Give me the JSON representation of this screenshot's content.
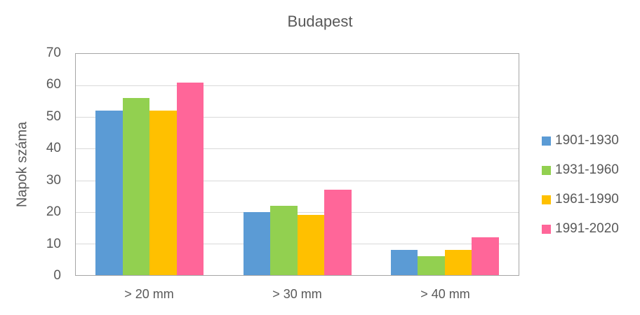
{
  "chart_data": {
    "type": "bar",
    "title": "Budapest",
    "xlabel": "",
    "ylabel": "Napok száma",
    "ylim": [
      0,
      70
    ],
    "yticks": [
      0,
      10,
      20,
      30,
      40,
      50,
      60,
      70
    ],
    "grid": true,
    "legend_position": "right",
    "categories": [
      "> 20 mm",
      "> 30 mm",
      "> 40 mm"
    ],
    "series": [
      {
        "name": "1901-1930",
        "color": "#5b9bd5",
        "values": [
          52,
          20,
          8
        ]
      },
      {
        "name": "1931-1960",
        "color": "#92d050",
        "values": [
          56,
          22,
          6
        ]
      },
      {
        "name": "1961-1990",
        "color": "#ffc000",
        "values": [
          52,
          19,
          8
        ]
      },
      {
        "name": "1991-2020",
        "color": "#ff6699",
        "values": [
          61,
          27,
          12
        ]
      }
    ]
  },
  "labels": {
    "title": "Budapest",
    "ylabel": "Napok száma",
    "yticks": [
      "0",
      "10",
      "20",
      "30",
      "40",
      "50",
      "60",
      "70"
    ],
    "categories": [
      "> 20 mm",
      "> 30 mm",
      "> 40 mm"
    ],
    "legend": [
      "1901-1930",
      "1931-1960",
      "1961-1990",
      "1991-2020"
    ]
  }
}
